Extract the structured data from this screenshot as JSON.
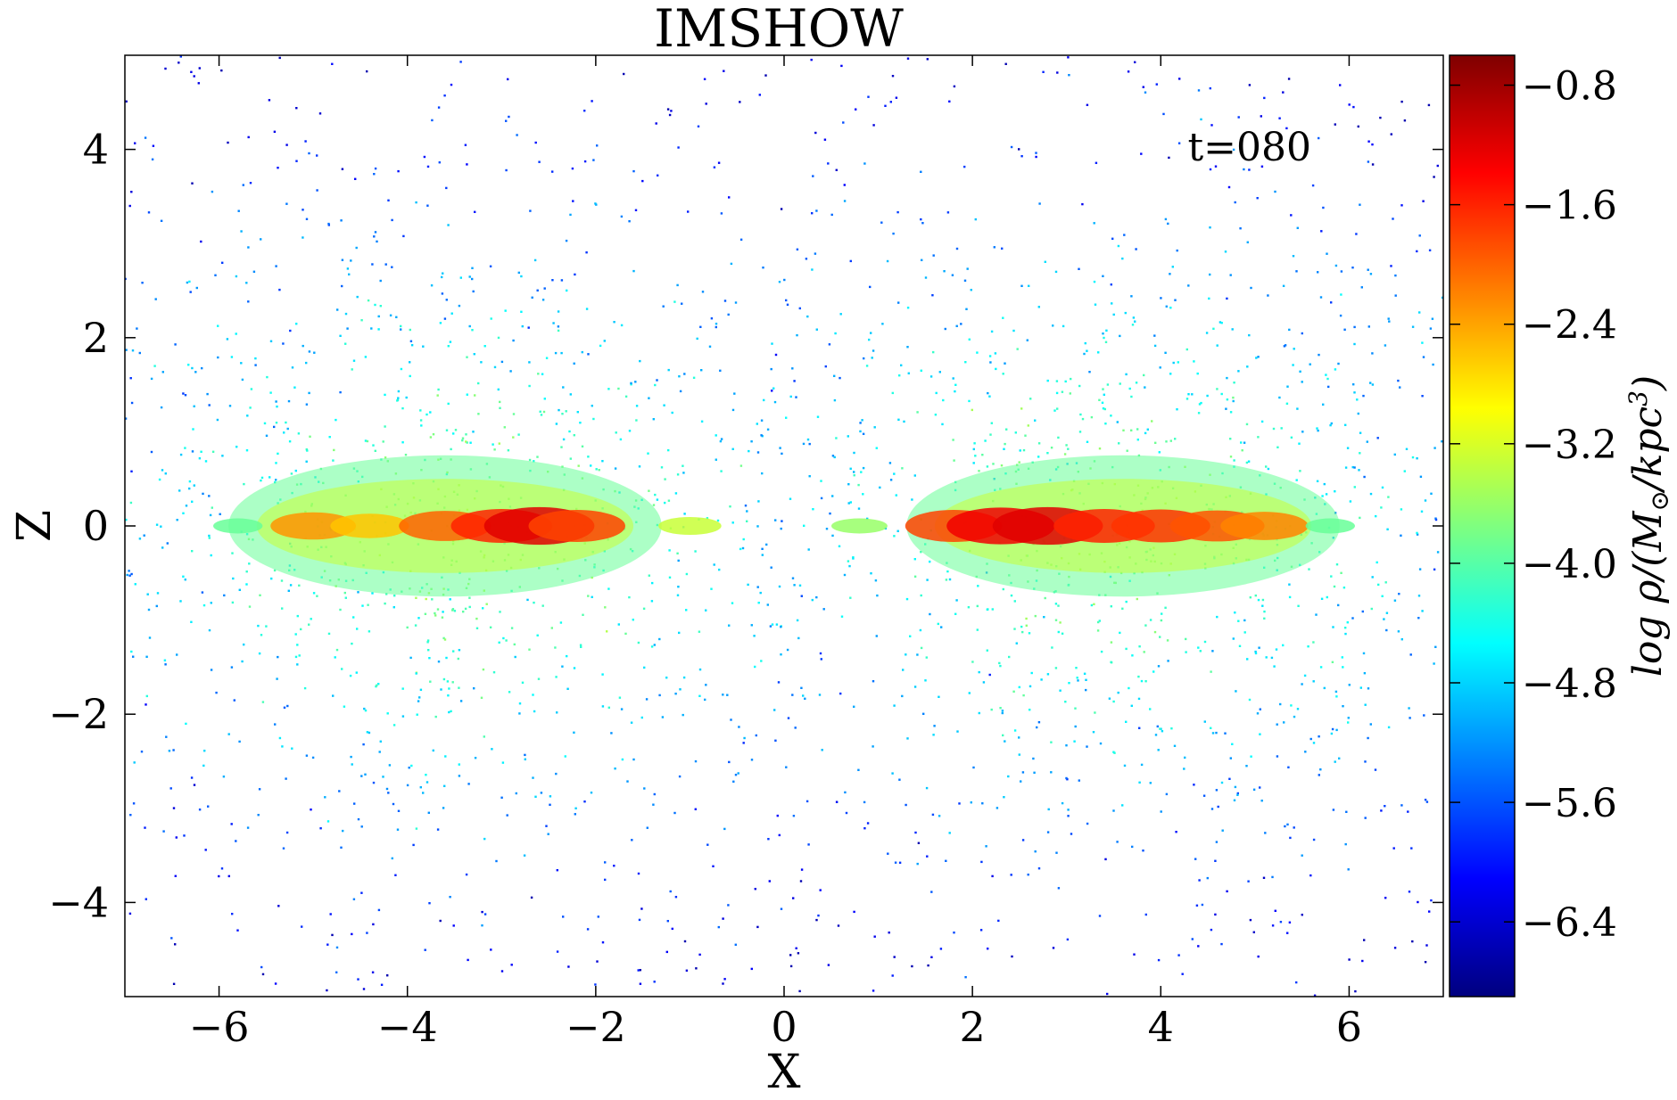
{
  "chart_data": {
    "type": "heatmap",
    "title": "IMSHOW",
    "xlabel": "X",
    "ylabel": "Z",
    "xlim": [
      -7,
      7
    ],
    "ylim": [
      -5,
      5
    ],
    "x_ticks": [
      -6,
      -4,
      -2,
      0,
      2,
      4,
      6
    ],
    "y_ticks": [
      -4,
      -2,
      0,
      2,
      4
    ],
    "annotation": "t=080",
    "grid": false,
    "colormap": "jet",
    "colorbar": {
      "label_prefix": "log ρ/(M",
      "label_sun": "⊙",
      "label_mid": "/kpc",
      "label_sup": "3",
      "label_suffix": ")",
      "range": [
        -6.9,
        -0.6
      ],
      "ticks": [
        -0.8,
        -1.6,
        -2.4,
        -3.2,
        -4.0,
        -4.8,
        -5.6,
        -6.4
      ],
      "tick_labels": [
        "−0.8",
        "−1.6",
        "−2.4",
        "−3.2",
        "−4.0",
        "−4.8",
        "−5.6",
        "−6.4"
      ],
      "colors": [
        "#00007f",
        "#0000ff",
        "#007fff",
        "#00ffff",
        "#7fff7f",
        "#ffff00",
        "#ff7f00",
        "#ff0000",
        "#7f0000"
      ]
    },
    "density_clumps": [
      {
        "x": -5.8,
        "z": 0.0,
        "log_rho": -3.9
      },
      {
        "x": -5.0,
        "z": 0.0,
        "log_rho": -2.3
      },
      {
        "x": -4.4,
        "z": 0.0,
        "log_rho": -2.6
      },
      {
        "x": -3.6,
        "z": 0.0,
        "log_rho": -2.0
      },
      {
        "x": -3.0,
        "z": 0.0,
        "log_rho": -1.6
      },
      {
        "x": -2.6,
        "z": 0.0,
        "log_rho": -1.2
      },
      {
        "x": -2.2,
        "z": 0.0,
        "log_rho": -1.8
      },
      {
        "x": -1.0,
        "z": 0.0,
        "log_rho": -3.3
      },
      {
        "x": 0.8,
        "z": 0.0,
        "log_rho": -3.6
      },
      {
        "x": 1.8,
        "z": 0.0,
        "log_rho": -1.8
      },
      {
        "x": 2.3,
        "z": 0.0,
        "log_rho": -1.3
      },
      {
        "x": 2.8,
        "z": 0.0,
        "log_rho": -1.2
      },
      {
        "x": 3.4,
        "z": 0.0,
        "log_rho": -1.6
      },
      {
        "x": 4.0,
        "z": 0.0,
        "log_rho": -1.7
      },
      {
        "x": 4.6,
        "z": 0.0,
        "log_rho": -1.9
      },
      {
        "x": 5.1,
        "z": 0.0,
        "log_rho": -2.2
      },
      {
        "x": 5.8,
        "z": 0.0,
        "log_rho": -3.9
      }
    ]
  }
}
